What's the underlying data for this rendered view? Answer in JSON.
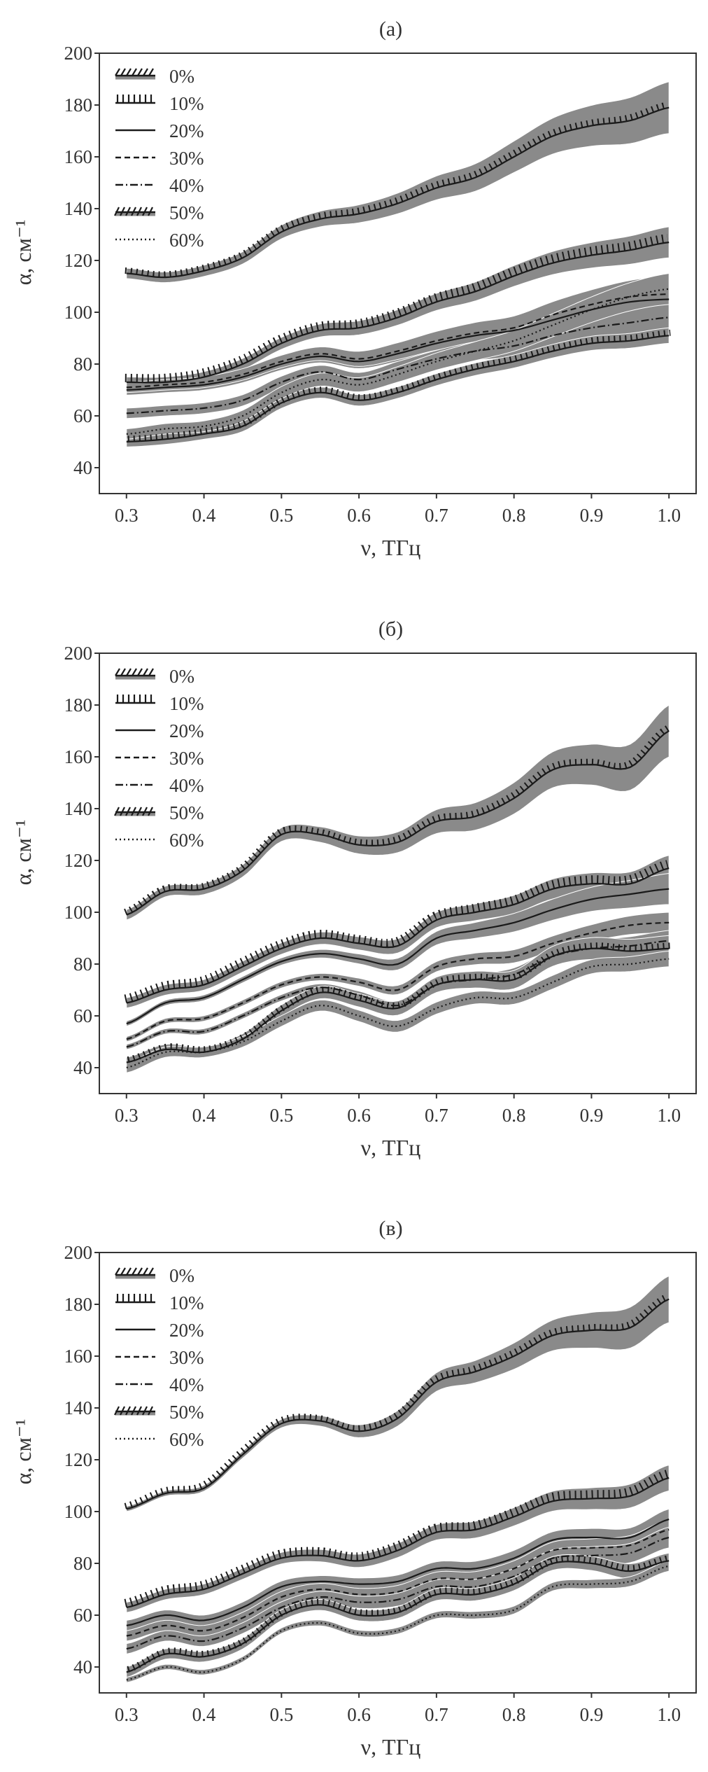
{
  "colors": {
    "band": "#8a8a8a",
    "line": "#1a1a1a",
    "axis": "#333333"
  },
  "chart_data": [
    {
      "type": "line",
      "title": "(а)",
      "xlabel": "ν, ТГц",
      "ylabel": "α, см⁻¹",
      "xlim": [
        0.265,
        1.035
      ],
      "ylim": [
        30,
        200
      ],
      "xticks": [
        "0.3",
        "0.4",
        "0.5",
        "0.6",
        "0.7",
        "0.8",
        "0.9",
        "1.0"
      ],
      "yticks": [
        "40",
        "60",
        "80",
        "100",
        "120",
        "140",
        "160",
        "180",
        "200"
      ],
      "legend_position": "top-left",
      "grid": false,
      "x": [
        0.3,
        0.35,
        0.4,
        0.45,
        0.5,
        0.55,
        0.6,
        0.65,
        0.7,
        0.75,
        0.8,
        0.85,
        0.9,
        0.95,
        1.0
      ],
      "series": [
        {
          "name": "0%",
          "style": "hatch-slant",
          "values": [
            115,
            113.5,
            116,
            121,
            131,
            136,
            138,
            142,
            148,
            152,
            160,
            168,
            172,
            174,
            179
          ],
          "band": [
            2,
            10
          ]
        },
        {
          "name": "10%",
          "style": "hatch-vertical",
          "values": [
            73,
            73,
            75,
            80,
            88,
            93,
            94,
            98,
            104,
            108,
            114,
            119,
            122,
            124,
            127
          ],
          "band": [
            2,
            6
          ]
        },
        {
          "name": "20%",
          "style": "solid",
          "values": [
            70,
            71,
            72,
            75,
            80,
            83,
            81,
            84,
            88,
            91,
            93,
            97,
            101,
            104,
            105
          ],
          "band": [
            2,
            6
          ]
        },
        {
          "name": "30%",
          "style": "dashed",
          "values": [
            71,
            72,
            73,
            76,
            81,
            84,
            82,
            85,
            89,
            92,
            94,
            99,
            103,
            106,
            107
          ],
          "band": [
            2,
            7
          ]
        },
        {
          "name": "40%",
          "style": "dashdot",
          "values": [
            61,
            62,
            63,
            66,
            73,
            77,
            74,
            78,
            82,
            85,
            87,
            91,
            94,
            96,
            98
          ],
          "band": [
            2,
            6
          ]
        },
        {
          "name": "50%",
          "style": "hatch-back",
          "values": [
            50,
            51,
            53,
            56,
            65,
            69,
            66,
            69,
            74,
            78,
            81,
            85,
            88,
            89,
            91
          ],
          "band": [
            2,
            3
          ]
        },
        {
          "name": "60%",
          "style": "dotted",
          "values": [
            53,
            55,
            56,
            60,
            69,
            74,
            72,
            76,
            81,
            85,
            89,
            95,
            101,
            106,
            109
          ],
          "band": [
            2,
            6
          ]
        }
      ]
    },
    {
      "type": "line",
      "title": "(б)",
      "xlabel": "ν, ТГц",
      "ylabel": "α, см⁻¹",
      "xlim": [
        0.265,
        1.035
      ],
      "ylim": [
        30,
        200
      ],
      "xticks": [
        "0.3",
        "0.4",
        "0.5",
        "0.6",
        "0.7",
        "0.8",
        "0.9",
        "1.0"
      ],
      "yticks": [
        "40",
        "60",
        "80",
        "100",
        "120",
        "140",
        "160",
        "180",
        "200"
      ],
      "legend_position": "top-left",
      "grid": false,
      "x": [
        0.3,
        0.35,
        0.4,
        0.45,
        0.5,
        0.55,
        0.6,
        0.65,
        0.7,
        0.75,
        0.8,
        0.85,
        0.9,
        0.95,
        1.0
      ],
      "series": [
        {
          "name": "0%",
          "style": "hatch-slant",
          "values": [
            99,
            108,
            109,
            116,
            130,
            130,
            126,
            127,
            135,
            137,
            144,
            155,
            157,
            156,
            170
          ],
          "band": [
            2,
            10
          ]
        },
        {
          "name": "10%",
          "style": "hatch-vertical",
          "values": [
            65,
            70,
            72,
            79,
            86,
            90,
            88,
            87,
            97,
            100,
            103,
            109,
            111,
            111,
            117
          ],
          "band": [
            2,
            5
          ]
        },
        {
          "name": "20%",
          "style": "solid",
          "values": [
            57,
            65,
            67,
            74,
            81,
            84,
            82,
            80,
            90,
            93,
            96,
            101,
            105,
            107,
            109
          ],
          "band": [
            1,
            6
          ]
        },
        {
          "name": "30%",
          "style": "dashed",
          "values": [
            51,
            58,
            59,
            65,
            72,
            75,
            73,
            70,
            79,
            82,
            83,
            88,
            92,
            95,
            96
          ],
          "band": [
            1,
            4
          ]
        },
        {
          "name": "40%",
          "style": "dashdot",
          "values": [
            48,
            54,
            54,
            60,
            67,
            71,
            68,
            64,
            72,
            74,
            76,
            83,
            86,
            87,
            89
          ],
          "band": [
            1,
            4
          ]
        },
        {
          "name": "50%",
          "style": "hatch-back",
          "values": [
            42,
            47,
            46,
            51,
            62,
            69,
            66,
            63,
            72,
            74,
            74,
            83,
            86,
            85,
            86
          ],
          "band": [
            2,
            5
          ]
        },
        {
          "name": "60%",
          "style": "dotted",
          "values": [
            40,
            46,
            46,
            50,
            58,
            64,
            60,
            56,
            63,
            67,
            67,
            73,
            79,
            80,
            82
          ],
          "band": [
            2,
            3
          ]
        }
      ]
    },
    {
      "type": "line",
      "title": "(в)",
      "xlabel": "ν, ТГц",
      "ylabel": "α, см⁻¹",
      "xlim": [
        0.265,
        1.035
      ],
      "ylim": [
        30,
        200
      ],
      "xticks": [
        "0.3",
        "0.4",
        "0.5",
        "0.6",
        "0.7",
        "0.8",
        "0.9",
        "1.0"
      ],
      "yticks": [
        "40",
        "60",
        "80",
        "100",
        "120",
        "140",
        "160",
        "180",
        "200"
      ],
      "legend_position": "top-left",
      "grid": false,
      "x": [
        0.3,
        0.35,
        0.4,
        0.45,
        0.5,
        0.55,
        0.6,
        0.65,
        0.7,
        0.75,
        0.8,
        0.85,
        0.9,
        0.95,
        1.0
      ],
      "series": [
        {
          "name": "0%",
          "style": "hatch-slant",
          "values": [
            101,
            107,
            109,
            122,
            134,
            135,
            131,
            136,
            150,
            154,
            160,
            168,
            170,
            171,
            182
          ],
          "band": [
            1,
            9
          ]
        },
        {
          "name": "10%",
          "style": "hatch-vertical",
          "values": [
            63,
            68,
            70,
            76,
            82,
            83,
            81,
            85,
            92,
            93,
            98,
            104,
            105,
            106,
            113
          ],
          "band": [
            2,
            5
          ]
        },
        {
          "name": "20%",
          "style": "solid",
          "values": [
            56,
            60,
            58,
            63,
            71,
            73,
            72,
            73,
            78,
            78,
            82,
            89,
            90,
            90,
            97
          ],
          "band": [
            2,
            4
          ]
        },
        {
          "name": "30%",
          "style": "dashed",
          "values": [
            52,
            56,
            54,
            59,
            67,
            70,
            68,
            69,
            74,
            74,
            78,
            85,
            86,
            87,
            93
          ],
          "band": [
            2,
            4
          ]
        },
        {
          "name": "40%",
          "style": "dashdot",
          "values": [
            47,
            52,
            50,
            55,
            63,
            67,
            65,
            66,
            71,
            71,
            75,
            82,
            83,
            84,
            90
          ],
          "band": [
            2,
            4
          ]
        },
        {
          "name": "50%",
          "style": "hatch-back",
          "values": [
            38,
            45,
            44,
            49,
            60,
            64,
            60,
            61,
            68,
            68,
            72,
            80,
            80,
            77,
            81
          ],
          "band": [
            2,
            3
          ]
        },
        {
          "name": "60%",
          "style": "dotted",
          "values": [
            35,
            40,
            38,
            43,
            54,
            57,
            53,
            54,
            60,
            60,
            62,
            71,
            72,
            73,
            79
          ],
          "band": [
            1,
            2
          ]
        }
      ]
    }
  ]
}
